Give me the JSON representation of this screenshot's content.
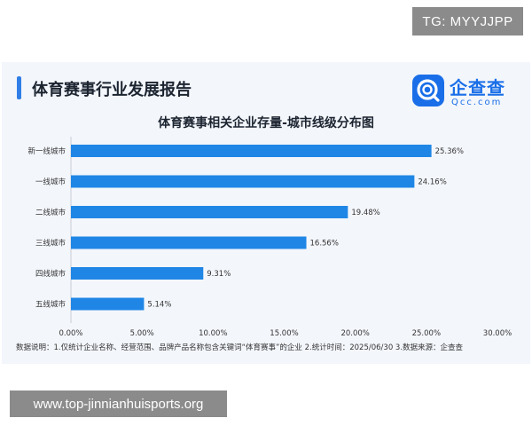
{
  "watermark_top": "TG: MYYJJPP",
  "watermark_bottom": "www.top-jinnianhuisports.org",
  "report_title": "体育赛事行业发展报告",
  "logo": {
    "name": "企查查",
    "sub": "Qcc.com",
    "brand_color": "#1a6fe8"
  },
  "footnote": "数据说明：1.仅统计企业名称、经营范围、品牌产品名称包含关键词“体育赛事”的企业  2.统计时间：2025/06/30  3.数据来源：企查查",
  "chart_data": {
    "type": "bar",
    "orientation": "horizontal",
    "title": "体育赛事相关企业存量-城市线级分布图",
    "categories": [
      "新一线城市",
      "一线城市",
      "二线城市",
      "三线城市",
      "四线城市",
      "五线城市"
    ],
    "values": [
      25.36,
      24.16,
      19.48,
      16.56,
      9.31,
      5.14
    ],
    "value_labels": [
      "25.36%",
      "24.16%",
      "19.48%",
      "16.56%",
      "9.31%",
      "5.14%"
    ],
    "xlim": [
      0,
      30
    ],
    "xticks": [
      "0.00%",
      "5.00%",
      "10.00%",
      "15.00%",
      "20.00%",
      "25.00%",
      "30.00%"
    ],
    "bar_color": "#1f86e6",
    "grid": false
  }
}
